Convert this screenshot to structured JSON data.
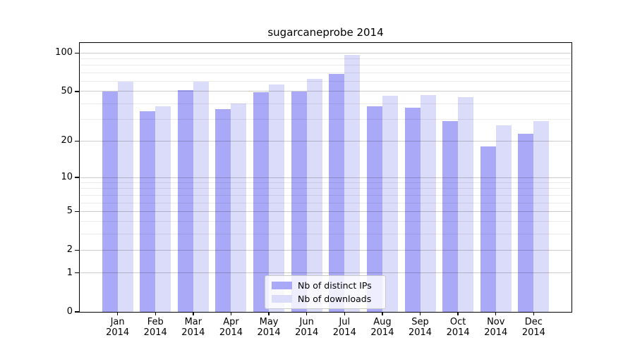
{
  "chart": {
    "title": "sugarcaneprobe 2014",
    "background_color": "#ffffff",
    "axis_color": "#000000",
    "gridline_minor_color": "#ececec",
    "gridline_major_color": "#cccccc"
  },
  "chart_data": {
    "type": "bar",
    "title": "sugarcaneprobe 2014",
    "categories": [
      "Jan 2014",
      "Feb 2014",
      "Mar 2014",
      "Apr 2014",
      "May 2014",
      "Jun 2014",
      "Jul 2014",
      "Aug 2014",
      "Sep 2014",
      "Oct 2014",
      "Nov 2014",
      "Dec 2014"
    ],
    "series": [
      {
        "name": "Nb of distinct IPs",
        "color": "#a9a9f8",
        "values": [
          50,
          35,
          51,
          36,
          49,
          50,
          69,
          38,
          37,
          29,
          18,
          23
        ]
      },
      {
        "name": "Nb of downloads",
        "color": "#dbdbfa",
        "values": [
          60,
          38,
          60,
          40,
          57,
          63,
          97,
          46,
          47,
          45,
          27,
          29
        ]
      }
    ],
    "xlabel": "",
    "ylabel": "",
    "y_scale": "log1p",
    "ylim": [
      0,
      120
    ],
    "y_axis_ticks": [
      0,
      1,
      2,
      5,
      10,
      20,
      50,
      100
    ],
    "y_minor_gridlines": [
      3,
      4,
      6,
      7,
      8,
      9,
      30,
      40,
      60,
      70,
      80,
      90
    ],
    "grid": true,
    "legend_position": "lower center"
  },
  "legend": {
    "items": [
      {
        "label": "Nb of distinct IPs",
        "color": "#a9a9f8"
      },
      {
        "label": "Nb of downloads",
        "color": "#dbdbfa"
      }
    ]
  }
}
